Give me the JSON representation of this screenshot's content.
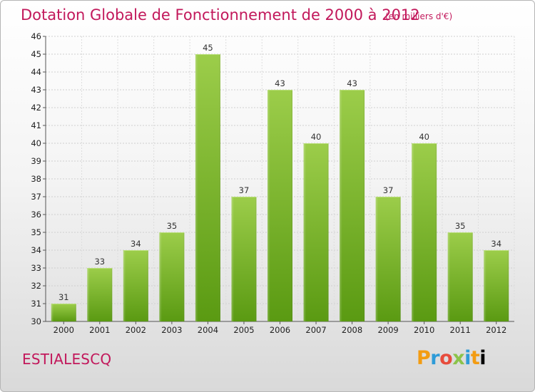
{
  "title": "Dotation Globale de Fonctionnement de 2000 à 2012",
  "subtitle": "(en milliers d'€)",
  "commune": "ESTIALESCQ",
  "logo_text": "Proxiti",
  "colors": {
    "title": "#c2185b",
    "bar_top": "#9ccd4a",
    "bar_bottom": "#5a9a12",
    "grid": "#cccccc"
  },
  "chart_data": {
    "type": "bar",
    "title": "Dotation Globale de Fonctionnement de 2000 à 2012",
    "subtitle": "(en milliers d'€)",
    "xlabel": "",
    "ylabel": "",
    "categories": [
      "2000",
      "2001",
      "2002",
      "2003",
      "2004",
      "2005",
      "2006",
      "2007",
      "2008",
      "2009",
      "2010",
      "2011",
      "2012"
    ],
    "values": [
      31,
      33,
      34,
      35,
      45,
      37,
      43,
      40,
      43,
      37,
      40,
      35,
      34
    ],
    "ylim": [
      30,
      46
    ],
    "yticks": [
      30,
      31,
      32,
      33,
      34,
      35,
      36,
      37,
      38,
      39,
      40,
      41,
      42,
      43,
      44,
      45,
      46
    ],
    "grid": true,
    "data_labels": true
  }
}
